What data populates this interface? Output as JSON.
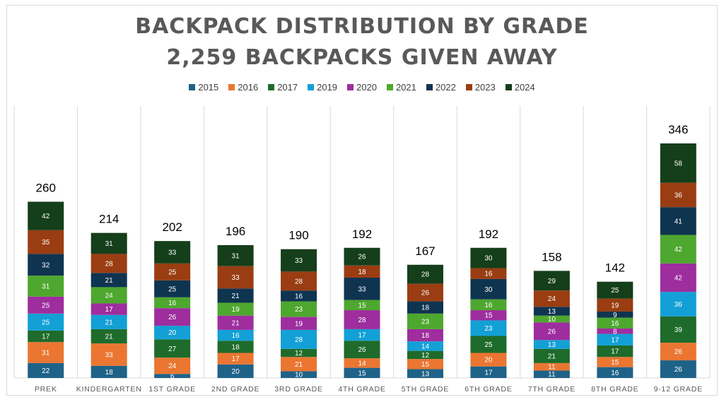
{
  "chart_data": {
    "type": "bar",
    "stacked": true,
    "title": "BACKPACK DISTRIBUTION BY GRADE",
    "subtitle": "2,259 BACKPACKS GIVEN AWAY",
    "legend_position": "top",
    "grid": "vertical",
    "categories": [
      "PREK",
      "KINDERGARTEN",
      "1ST GRADE",
      "2ND GRADE",
      "3RD GRADE",
      "4TH GRADE",
      "5TH GRADE",
      "6TH GRADE",
      "7TH GRADE",
      "8TH GRADE",
      "9-12 GRADE"
    ],
    "totals": [
      260,
      214,
      202,
      196,
      190,
      192,
      167,
      192,
      158,
      142,
      346
    ],
    "ylim": [
      0,
      346
    ],
    "series": [
      {
        "name": "2015",
        "color": "#1f6288",
        "values": [
          22,
          18,
          6,
          20,
          10,
          15,
          13,
          17,
          11,
          16,
          26
        ]
      },
      {
        "name": "2016",
        "color": "#ea7631",
        "values": [
          31,
          33,
          24,
          17,
          21,
          14,
          15,
          20,
          11,
          15,
          26
        ]
      },
      {
        "name": "2017",
        "color": "#1e6b2b",
        "values": [
          17,
          21,
          27,
          18,
          12,
          26,
          12,
          25,
          21,
          17,
          39
        ]
      },
      {
        "name": "2019",
        "color": "#12a0d6",
        "values": [
          25,
          21,
          20,
          16,
          28,
          17,
          14,
          23,
          13,
          17,
          36
        ]
      },
      {
        "name": "2020",
        "color": "#9e2d9e",
        "values": [
          25,
          17,
          26,
          21,
          19,
          28,
          18,
          15,
          26,
          8,
          42
        ]
      },
      {
        "name": "2021",
        "color": "#4ea72e",
        "values": [
          31,
          24,
          16,
          19,
          23,
          15,
          23,
          16,
          10,
          16,
          42
        ]
      },
      {
        "name": "2022",
        "color": "#0f3450",
        "values": [
          32,
          21,
          25,
          21,
          16,
          33,
          18,
          30,
          13,
          9,
          41
        ]
      },
      {
        "name": "2023",
        "color": "#9a3d12",
        "values": [
          35,
          28,
          25,
          33,
          28,
          18,
          26,
          16,
          24,
          19,
          36
        ]
      },
      {
        "name": "2024",
        "color": "#153e1a",
        "values": [
          42,
          31,
          33,
          31,
          33,
          26,
          28,
          30,
          29,
          25,
          58
        ]
      }
    ]
  }
}
